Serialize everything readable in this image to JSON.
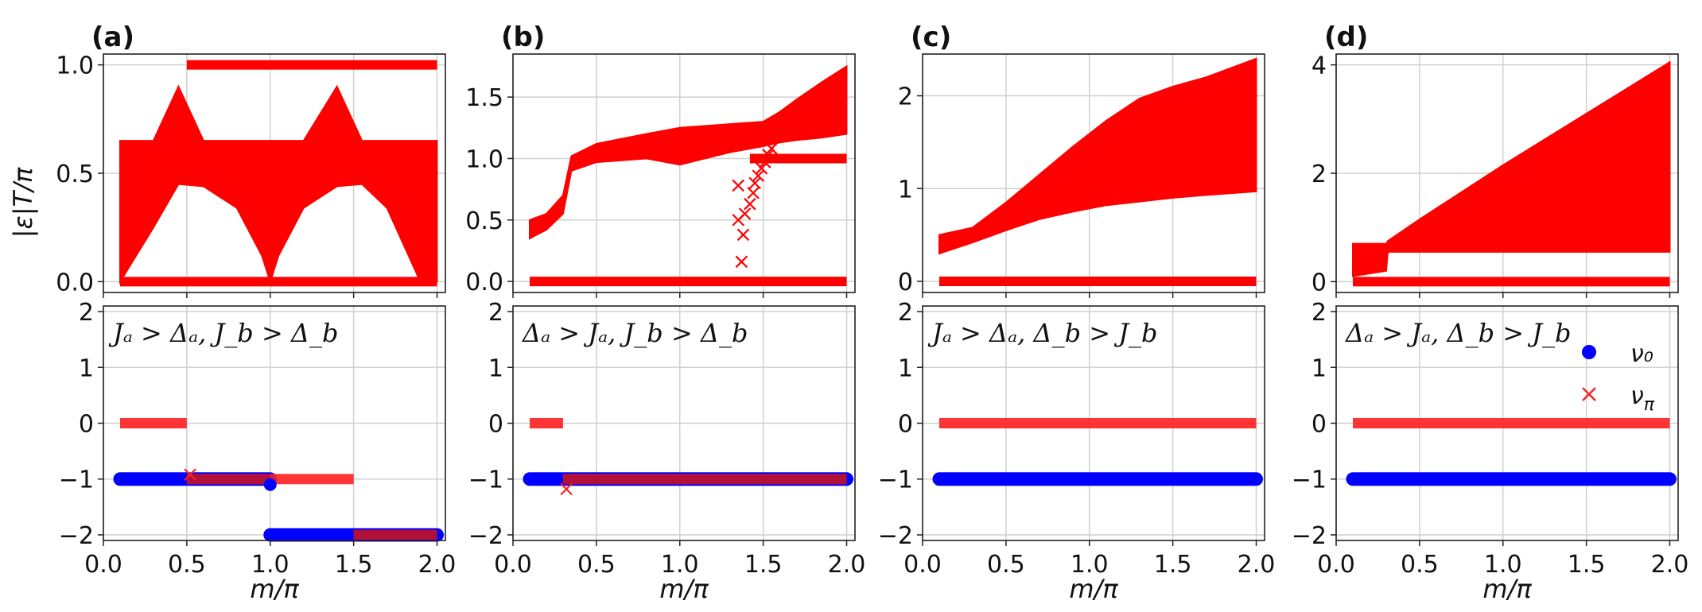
{
  "figure": {
    "y_axis_label_top": "|ε|T/π",
    "x_axis_label": "m/π",
    "legend": {
      "nu0": "ν₀",
      "nupi": "ν_π"
    },
    "colors": {
      "quasienergy": "#ff0000",
      "nu0": "#0000ff",
      "nupi": "#ff2020",
      "overlap": "#b0103a",
      "grid": "#d0d0d0"
    }
  },
  "chart_data": [
    {
      "id": "a",
      "panel_label": "(a)",
      "regime_label": "Jₐ > Δₐ, J_b > Δ_b",
      "top": {
        "type": "band",
        "ylabel": "|ε|T/π",
        "ylim": [
          -0.05,
          1.05
        ],
        "yticks": [
          0.0,
          0.5,
          1.0
        ],
        "ytick_labels": [
          "0.0",
          "0.5",
          "1.0"
        ],
        "xlim": [
          0.0,
          2.05
        ],
        "bands": [
          {
            "x": [
              0.1,
              0.3,
              0.45,
              0.6,
              0.8,
              0.95,
              1.0,
              1.05,
              1.2,
              1.4,
              1.55,
              1.7,
              1.9,
              2.0
            ],
            "lower": [
              0.0,
              0.25,
              0.45,
              0.44,
              0.34,
              0.12,
              0.0,
              0.12,
              0.34,
              0.44,
              0.45,
              0.34,
              0.0,
              0.0
            ],
            "upper": [
              0.65,
              0.65,
              0.9,
              0.65,
              0.65,
              0.65,
              0.65,
              0.65,
              0.65,
              0.9,
              0.65,
              0.65,
              0.65,
              0.65
            ]
          }
        ],
        "lines": [
          {
            "x": [
              0.1,
              2.0
            ],
            "y": [
              0.0,
              0.0
            ]
          },
          {
            "x": [
              0.5,
              2.0
            ],
            "y": [
              1.0,
              1.0
            ]
          }
        ],
        "points": []
      },
      "bottom": {
        "type": "scatter",
        "ylim": [
          -2.1,
          2.1
        ],
        "yticks": [
          -2,
          -1,
          0,
          1,
          2
        ],
        "ytick_labels": [
          "−2",
          "−1",
          "0",
          "1",
          "2"
        ],
        "xlim": [
          0.0,
          2.05
        ],
        "xticks": [
          0.0,
          0.5,
          1.0,
          1.5,
          2.0
        ],
        "xtick_labels": [
          "0.0",
          "0.5",
          "1.0",
          "1.5",
          "2.0"
        ],
        "nu0_segments": [
          {
            "x0": 0.1,
            "x1": 1.0,
            "y": -1
          },
          {
            "x0": 1.0,
            "x1": 2.0,
            "y": -2
          }
        ],
        "nupi_segments": [
          {
            "x0": 0.1,
            "x1": 0.5,
            "y": 0
          },
          {
            "x0": 0.5,
            "x1": 1.5,
            "y": -1
          },
          {
            "x0": 1.5,
            "x1": 2.0,
            "y": -2
          }
        ],
        "overlaps": [
          {
            "x0": 0.5,
            "x1": 1.0,
            "y": -1
          },
          {
            "x0": 1.5,
            "x1": 2.0,
            "y": -2
          }
        ],
        "extra_points": [
          {
            "series": "nu0",
            "x": 1.0,
            "y": -1.1
          },
          {
            "series": "nupi",
            "x": 0.52,
            "y": -0.92
          }
        ]
      }
    },
    {
      "id": "b",
      "panel_label": "(b)",
      "regime_label": "Δₐ > Jₐ, J_b > Δ_b",
      "top": {
        "type": "band",
        "ylabel": "",
        "ylim": [
          -0.09,
          1.85
        ],
        "yticks": [
          0.0,
          0.5,
          1.0,
          1.5
        ],
        "ytick_labels": [
          "0.0",
          "0.5",
          "1.0",
          "1.5"
        ],
        "xlim": [
          0.0,
          2.05
        ],
        "bands": [
          {
            "x": [
              0.1,
              0.2,
              0.3,
              0.35,
              0.5,
              0.8,
              1.0,
              1.3,
              1.5,
              1.6,
              1.7,
              1.85,
              2.0
            ],
            "lower": [
              0.35,
              0.42,
              0.55,
              0.9,
              0.97,
              1.0,
              0.95,
              1.05,
              1.1,
              1.13,
              1.15,
              1.17,
              1.2
            ],
            "upper": [
              0.5,
              0.55,
              0.7,
              1.02,
              1.12,
              1.2,
              1.25,
              1.28,
              1.3,
              1.38,
              1.48,
              1.62,
              1.75
            ]
          }
        ],
        "lines": [
          {
            "x": [
              0.1,
              2.0
            ],
            "y": [
              0.0,
              0.0
            ]
          },
          {
            "x": [
              1.42,
              2.0
            ],
            "y": [
              1.0,
              1.0
            ]
          }
        ],
        "points": [
          {
            "x": 1.35,
            "y": 0.78
          },
          {
            "x": 1.35,
            "y": 0.5
          },
          {
            "x": 1.37,
            "y": 0.16
          },
          {
            "x": 1.38,
            "y": 0.38
          },
          {
            "x": 1.39,
            "y": 0.55
          },
          {
            "x": 1.42,
            "y": 0.63
          },
          {
            "x": 1.44,
            "y": 0.72
          },
          {
            "x": 1.45,
            "y": 0.8
          },
          {
            "x": 1.47,
            "y": 0.86
          },
          {
            "x": 1.49,
            "y": 0.92
          },
          {
            "x": 1.51,
            "y": 0.97
          },
          {
            "x": 1.53,
            "y": 1.03
          },
          {
            "x": 1.55,
            "y": 1.08
          }
        ]
      },
      "bottom": {
        "type": "scatter",
        "ylim": [
          -2.1,
          2.1
        ],
        "yticks": [
          -2,
          -1,
          0,
          1,
          2
        ],
        "ytick_labels": [
          "−2",
          "−1",
          "0",
          "1",
          "2"
        ],
        "xlim": [
          0.0,
          2.05
        ],
        "xticks": [
          0.0,
          0.5,
          1.0,
          1.5,
          2.0
        ],
        "xtick_labels": [
          "0.0",
          "0.5",
          "1.0",
          "1.5",
          "2.0"
        ],
        "nu0_segments": [
          {
            "x0": 0.1,
            "x1": 2.0,
            "y": -1
          }
        ],
        "nupi_segments": [
          {
            "x0": 0.1,
            "x1": 0.3,
            "y": 0
          },
          {
            "x0": 0.3,
            "x1": 2.0,
            "y": -1
          }
        ],
        "overlaps": [
          {
            "x0": 0.3,
            "x1": 2.0,
            "y": -1
          }
        ],
        "extra_points": [
          {
            "series": "nupi",
            "x": 0.32,
            "y": -1.18
          }
        ]
      }
    },
    {
      "id": "c",
      "panel_label": "(c)",
      "regime_label": "Jₐ > Δₐ, Δ_b > J_b",
      "top": {
        "type": "band",
        "ylabel": "",
        "ylim": [
          -0.12,
          2.45
        ],
        "yticks": [
          0,
          1,
          2
        ],
        "ytick_labels": [
          "0",
          "1",
          "2"
        ],
        "xlim": [
          0.0,
          2.05
        ],
        "bands": [
          {
            "x": [
              0.1,
              0.3,
              0.5,
              0.7,
              0.9,
              1.1,
              1.3,
              1.5,
              1.7,
              2.0
            ],
            "lower": [
              0.3,
              0.42,
              0.55,
              0.67,
              0.75,
              0.82,
              0.86,
              0.9,
              0.93,
              0.97
            ],
            "upper": [
              0.5,
              0.58,
              0.85,
              1.15,
              1.45,
              1.73,
              1.97,
              2.1,
              2.2,
              2.4
            ]
          }
        ],
        "lines": [
          {
            "x": [
              0.1,
              2.0
            ],
            "y": [
              0.0,
              0.0
            ]
          }
        ],
        "points": []
      },
      "bottom": {
        "type": "scatter",
        "ylim": [
          -2.1,
          2.1
        ],
        "yticks": [
          -2,
          -1,
          0,
          1,
          2
        ],
        "ytick_labels": [
          "−2",
          "−1",
          "0",
          "1",
          "2"
        ],
        "xlim": [
          0.0,
          2.05
        ],
        "xticks": [
          0.0,
          0.5,
          1.0,
          1.5,
          2.0
        ],
        "xtick_labels": [
          "0.0",
          "0.5",
          "1.0",
          "1.5",
          "2.0"
        ],
        "nu0_segments": [
          {
            "x0": 0.1,
            "x1": 2.0,
            "y": -1
          }
        ],
        "nupi_segments": [
          {
            "x0": 0.1,
            "x1": 2.0,
            "y": 0
          }
        ],
        "overlaps": [],
        "extra_points": []
      }
    },
    {
      "id": "d",
      "panel_label": "(d)",
      "regime_label": "Δₐ > Jₐ, Δ_b > J_b",
      "top": {
        "type": "band",
        "ylabel": "",
        "ylim": [
          -0.2,
          4.2
        ],
        "yticks": [
          0,
          2,
          4
        ],
        "ytick_labels": [
          "0",
          "2",
          "4"
        ],
        "xlim": [
          0.0,
          2.05
        ],
        "bands": [
          {
            "x": [
              0.1,
              0.3,
              0.31,
              0.5,
              1.0,
              1.5,
              2.0
            ],
            "lower": [
              0.1,
              0.2,
              0.55,
              0.55,
              0.55,
              0.55,
              0.55
            ],
            "upper": [
              0.7,
              0.7,
              0.75,
              1.15,
              2.15,
              3.1,
              4.05
            ]
          }
        ],
        "lines": [
          {
            "x": [
              0.1,
              2.0
            ],
            "y": [
              0.0,
              0.0
            ]
          }
        ],
        "points": []
      },
      "bottom": {
        "type": "scatter",
        "ylim": [
          -2.1,
          2.1
        ],
        "yticks": [
          -2,
          -1,
          0,
          1,
          2
        ],
        "ytick_labels": [
          "−2",
          "−1",
          "0",
          "1",
          "2"
        ],
        "xlim": [
          0.0,
          2.05
        ],
        "xticks": [
          0.0,
          0.5,
          1.0,
          1.5,
          2.0
        ],
        "xtick_labels": [
          "0.0",
          "0.5",
          "1.0",
          "1.5",
          "2.0"
        ],
        "nu0_segments": [
          {
            "x0": 0.1,
            "x1": 2.0,
            "y": -1
          }
        ],
        "nupi_segments": [
          {
            "x0": 0.1,
            "x1": 2.0,
            "y": 0
          }
        ],
        "overlaps": [],
        "extra_points": []
      }
    }
  ]
}
